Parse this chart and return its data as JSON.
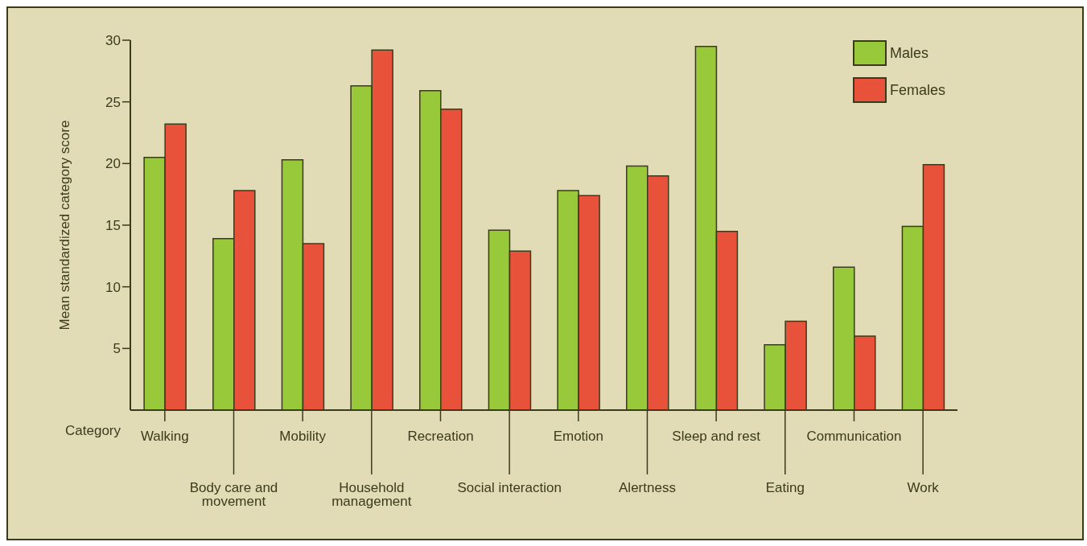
{
  "chart_data": {
    "type": "bar",
    "xlabel": "Category",
    "ylabel": "Mean standardized category score",
    "categories": [
      "Walking",
      "Body care and movement",
      "Mobility",
      "Household management",
      "Recreation",
      "Social interaction",
      "Emotion",
      "Alertness",
      "Sleep and rest",
      "Eating",
      "Communication",
      "Work"
    ],
    "series": [
      {
        "name": "Males",
        "color": "#97c93a",
        "values": [
          20.5,
          13.9,
          20.3,
          26.3,
          25.9,
          14.6,
          17.8,
          19.8,
          29.5,
          5.3,
          11.6,
          14.9
        ]
      },
      {
        "name": "Females",
        "color": "#e8523a",
        "values": [
          23.2,
          17.8,
          13.5,
          29.2,
          24.4,
          12.9,
          17.4,
          19.0,
          14.5,
          7.2,
          6.0,
          19.9
        ]
      }
    ],
    "ylim": [
      0,
      30
    ],
    "yticks": [
      5,
      10,
      15,
      20,
      25,
      30
    ],
    "grid": false,
    "legend": "top right"
  }
}
